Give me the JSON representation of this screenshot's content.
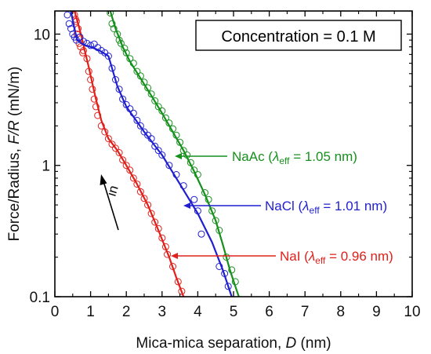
{
  "chart_data": {
    "type": "scatter",
    "title": "",
    "xlabel_text": "Mica-mica separation, ",
    "xlabel_var": "D",
    "xlabel_unit": " (nm)",
    "ylabel_text": "Force/Radius, ",
    "ylabel_var": "F/R",
    "ylabel_unit": " (mN/m)",
    "xlim": [
      0,
      10
    ],
    "ylim": [
      0.1,
      15
    ],
    "yscale": "log",
    "grid": false,
    "x_ticks": [
      0,
      1,
      2,
      3,
      4,
      5,
      6,
      7,
      8,
      9,
      10
    ],
    "y_ticks": [
      {
        "value": 0.1,
        "label": "0.1"
      },
      {
        "value": 1,
        "label": "1"
      },
      {
        "value": 10,
        "label": "10"
      }
    ],
    "legend_box": "Concentration = 0.1 M",
    "arrow_label": "in",
    "colors": {
      "NaI": "#e0201b",
      "NaCl": "#1f1fd0",
      "NaAc": "#16901c"
    },
    "series": [
      {
        "key": "NaI",
        "label_pre": "NaI (",
        "label_lambda": "λ",
        "label_sub": "eff",
        "label_post": " = 0.96 nm)",
        "color": "#e0201b",
        "fit": [
          [
            0.55,
            15
          ],
          [
            0.65,
            12
          ],
          [
            0.75,
            9.5
          ],
          [
            0.85,
            7.2
          ],
          [
            0.95,
            5.6
          ],
          [
            1.05,
            4.2
          ],
          [
            1.15,
            3.2
          ],
          [
            1.3,
            2.2
          ],
          [
            1.5,
            1.6
          ],
          [
            1.75,
            1.3
          ],
          [
            2.0,
            1.0
          ],
          [
            2.3,
            0.72
          ],
          [
            2.6,
            0.5
          ],
          [
            2.9,
            0.32
          ],
          [
            3.2,
            0.2
          ],
          [
            3.4,
            0.14
          ],
          [
            3.6,
            0.1
          ]
        ],
        "points": [
          [
            0.55,
            14
          ],
          [
            0.6,
            12.5
          ],
          [
            0.65,
            11
          ],
          [
            0.7,
            9.5
          ],
          [
            0.72,
            8
          ],
          [
            0.78,
            7.2
          ],
          [
            0.62,
            10
          ],
          [
            0.68,
            8.5
          ],
          [
            0.58,
            13
          ],
          [
            0.8,
            7.5
          ],
          [
            0.9,
            6.5
          ],
          [
            0.95,
            5.2
          ],
          [
            1.0,
            4.5
          ],
          [
            1.05,
            3.8
          ],
          [
            1.1,
            3.2
          ],
          [
            1.15,
            2.8
          ],
          [
            1.2,
            2.4
          ],
          [
            1.3,
            2.0
          ],
          [
            1.4,
            1.8
          ],
          [
            1.5,
            1.6
          ],
          [
            1.6,
            1.45
          ],
          [
            1.7,
            1.35
          ],
          [
            1.8,
            1.25
          ],
          [
            1.9,
            1.1
          ],
          [
            2.0,
            1.0
          ],
          [
            2.1,
            0.92
          ],
          [
            2.2,
            0.8
          ],
          [
            2.3,
            0.72
          ],
          [
            2.4,
            0.63
          ],
          [
            2.5,
            0.56
          ],
          [
            2.6,
            0.5
          ],
          [
            2.7,
            0.43
          ],
          [
            2.8,
            0.37
          ],
          [
            2.9,
            0.33
          ],
          [
            3.0,
            0.28
          ],
          [
            3.1,
            0.24
          ],
          [
            3.15,
            0.21
          ],
          [
            3.3,
            0.17
          ],
          [
            3.45,
            0.13
          ],
          [
            3.55,
            0.11
          ]
        ]
      },
      {
        "key": "NaCl",
        "label_pre": "NaCl (",
        "label_lambda": "λ",
        "label_sub": "eff",
        "label_post": " = 1.01 nm)",
        "color": "#1f1fd0",
        "fit": [
          [
            0.45,
            15
          ],
          [
            0.52,
            12
          ],
          [
            0.62,
            9.0
          ],
          [
            0.8,
            8.3
          ],
          [
            1.0,
            8.0
          ],
          [
            1.25,
            7.5
          ],
          [
            1.5,
            6.8
          ],
          [
            1.75,
            4.0
          ],
          [
            2.0,
            2.8
          ],
          [
            2.5,
            1.8
          ],
          [
            3.0,
            1.2
          ],
          [
            3.5,
            0.72
          ],
          [
            4.0,
            0.43
          ],
          [
            4.4,
            0.26
          ],
          [
            4.7,
            0.16
          ],
          [
            4.9,
            0.11
          ],
          [
            4.95,
            0.1
          ]
        ],
        "points": [
          [
            0.35,
            14
          ],
          [
            0.4,
            12
          ],
          [
            0.45,
            11
          ],
          [
            0.5,
            10
          ],
          [
            0.55,
            9.5
          ],
          [
            0.6,
            9
          ],
          [
            0.7,
            9.5
          ],
          [
            0.8,
            8.8
          ],
          [
            0.9,
            8.5
          ],
          [
            1.0,
            8.2
          ],
          [
            1.1,
            8.4
          ],
          [
            1.2,
            7.9
          ],
          [
            1.3,
            7.5
          ],
          [
            1.4,
            7.2
          ],
          [
            1.5,
            6.8
          ],
          [
            1.6,
            5.5
          ],
          [
            1.7,
            4.5
          ],
          [
            1.8,
            3.8
          ],
          [
            1.9,
            3.2
          ],
          [
            2.0,
            2.9
          ],
          [
            2.1,
            2.7
          ],
          [
            2.2,
            2.5
          ],
          [
            2.3,
            2.2
          ],
          [
            2.4,
            2.0
          ],
          [
            2.5,
            1.8
          ],
          [
            2.6,
            1.7
          ],
          [
            2.7,
            1.6
          ],
          [
            2.8,
            1.4
          ],
          [
            2.9,
            1.3
          ],
          [
            3.0,
            1.2
          ],
          [
            3.2,
            1.0
          ],
          [
            3.4,
            0.85
          ],
          [
            3.6,
            0.7
          ],
          [
            3.9,
            0.55
          ],
          [
            4.0,
            0.45
          ],
          [
            4.1,
            0.3
          ],
          [
            4.6,
            0.17
          ],
          [
            4.75,
            0.15
          ],
          [
            4.85,
            0.12
          ]
        ]
      },
      {
        "key": "NaAc",
        "label_pre": "NaAc (",
        "label_lambda": "λ",
        "label_sub": "eff",
        "label_post": " = 1.05 nm)",
        "color": "#16901c",
        "fit": [
          [
            1.55,
            15
          ],
          [
            1.7,
            11
          ],
          [
            1.9,
            8
          ],
          [
            2.1,
            6.2
          ],
          [
            2.4,
            4.6
          ],
          [
            2.7,
            3.4
          ],
          [
            3.0,
            2.5
          ],
          [
            3.3,
            1.8
          ],
          [
            3.6,
            1.3
          ],
          [
            3.9,
            0.9
          ],
          [
            4.2,
            0.6
          ],
          [
            4.5,
            0.38
          ],
          [
            4.7,
            0.25
          ],
          [
            4.9,
            0.16
          ],
          [
            5.05,
            0.12
          ],
          [
            5.15,
            0.1
          ]
        ],
        "points": [
          [
            1.55,
            14.5
          ],
          [
            1.6,
            12
          ],
          [
            1.65,
            11
          ],
          [
            1.75,
            10
          ],
          [
            1.8,
            9
          ],
          [
            1.85,
            8.5
          ],
          [
            1.95,
            7.8
          ],
          [
            2.0,
            7.2
          ],
          [
            2.1,
            6.5
          ],
          [
            2.2,
            6.0
          ],
          [
            2.3,
            5.2
          ],
          [
            2.4,
            4.8
          ],
          [
            2.5,
            4.3
          ],
          [
            2.6,
            3.9
          ],
          [
            2.7,
            3.5
          ],
          [
            2.8,
            3.1
          ],
          [
            2.9,
            2.8
          ],
          [
            3.0,
            2.6
          ],
          [
            3.1,
            2.3
          ],
          [
            3.2,
            2.1
          ],
          [
            3.3,
            1.9
          ],
          [
            3.4,
            1.7
          ],
          [
            3.5,
            1.5
          ],
          [
            3.6,
            1.3
          ],
          [
            3.7,
            1.2
          ],
          [
            3.8,
            1.05
          ],
          [
            3.9,
            0.92
          ],
          [
            4.0,
            0.85
          ],
          [
            4.2,
            0.62
          ],
          [
            4.3,
            0.55
          ],
          [
            4.4,
            0.45
          ],
          [
            4.5,
            0.38
          ],
          [
            4.6,
            0.32
          ],
          [
            4.8,
            0.2
          ],
          [
            4.95,
            0.16
          ],
          [
            5.05,
            0.13
          ]
        ]
      }
    ]
  }
}
